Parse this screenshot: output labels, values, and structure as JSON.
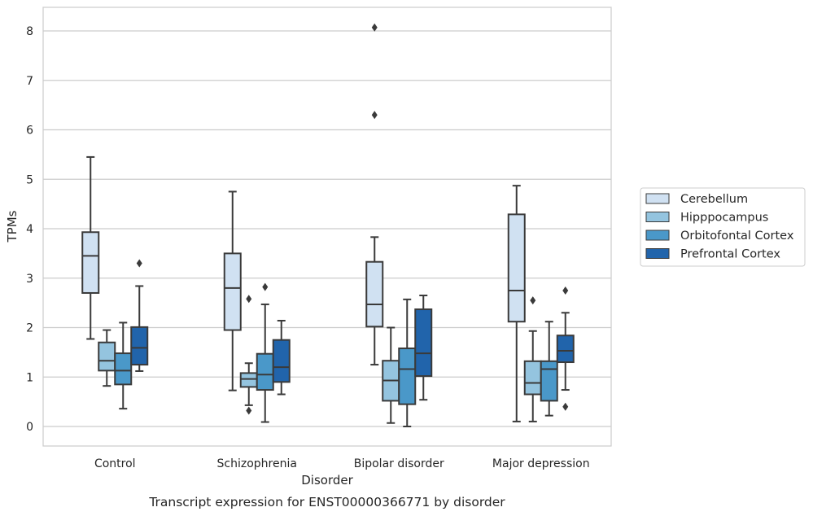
{
  "chart_data": {
    "type": "box",
    "xlabel": "Disorder",
    "ylabel": "TPMs",
    "caption": "Transcript expression for ENST00000366771 by disorder",
    "categories": [
      "Control",
      "Schizophrenia",
      "Bipolar disorder",
      "Major depression"
    ],
    "yticks": [
      "0",
      "1",
      "2",
      "3",
      "4",
      "5",
      "6",
      "7",
      "8"
    ],
    "ylim": [
      -0.4,
      8.5
    ],
    "grid": "horizontal",
    "legend_position": "right",
    "series": [
      {
        "name": "Cerebellum",
        "color": "#d0e1f2",
        "boxes": [
          {
            "whislo": 1.77,
            "q1": 2.7,
            "med": 3.45,
            "q3": 3.93,
            "whishi": 5.45,
            "fliers": []
          },
          {
            "whislo": 0.73,
            "q1": 1.95,
            "med": 2.8,
            "q3": 3.5,
            "whishi": 4.75,
            "fliers": []
          },
          {
            "whislo": 1.25,
            "q1": 2.02,
            "med": 2.47,
            "q3": 3.33,
            "whishi": 3.83,
            "fliers": [
              6.3,
              8.07
            ]
          },
          {
            "whislo": 0.1,
            "q1": 2.12,
            "med": 2.75,
            "q3": 4.29,
            "whishi": 4.87,
            "fliers": []
          }
        ]
      },
      {
        "name": "Hipppocampus",
        "color": "#94c4df",
        "boxes": [
          {
            "whislo": 0.82,
            "q1": 1.13,
            "med": 1.33,
            "q3": 1.7,
            "whishi": 1.95,
            "fliers": []
          },
          {
            "whislo": 0.43,
            "q1": 0.8,
            "med": 0.96,
            "q3": 1.08,
            "whishi": 1.28,
            "fliers": [
              0.32,
              2.58
            ]
          },
          {
            "whislo": 0.07,
            "q1": 0.52,
            "med": 0.93,
            "q3": 1.33,
            "whishi": 2.0,
            "fliers": []
          },
          {
            "whislo": 0.1,
            "q1": 0.65,
            "med": 0.88,
            "q3": 1.32,
            "whishi": 1.93,
            "fliers": [
              2.55
            ]
          }
        ]
      },
      {
        "name": "Orbitofontal Cortex",
        "color": "#4a98c9",
        "boxes": [
          {
            "whislo": 0.36,
            "q1": 0.85,
            "med": 1.13,
            "q3": 1.48,
            "whishi": 2.1,
            "fliers": []
          },
          {
            "whislo": 0.09,
            "q1": 0.74,
            "med": 1.05,
            "q3": 1.47,
            "whishi": 2.47,
            "fliers": [
              2.82
            ]
          },
          {
            "whislo": 0.0,
            "q1": 0.45,
            "med": 1.16,
            "q3": 1.58,
            "whishi": 2.57,
            "fliers": []
          },
          {
            "whislo": 0.22,
            "q1": 0.52,
            "med": 1.16,
            "q3": 1.32,
            "whishi": 2.12,
            "fliers": []
          }
        ]
      },
      {
        "name": "Prefrontal Cortex",
        "color": "#2164ab",
        "boxes": [
          {
            "whislo": 1.12,
            "q1": 1.25,
            "med": 1.59,
            "q3": 2.01,
            "whishi": 2.84,
            "fliers": [
              3.3
            ]
          },
          {
            "whislo": 0.65,
            "q1": 0.9,
            "med": 1.2,
            "q3": 1.75,
            "whishi": 2.14,
            "fliers": []
          },
          {
            "whislo": 0.54,
            "q1": 1.02,
            "med": 1.48,
            "q3": 2.37,
            "whishi": 2.65,
            "fliers": []
          },
          {
            "whislo": 0.74,
            "q1": 1.3,
            "med": 1.53,
            "q3": 1.84,
            "whishi": 2.3,
            "fliers": [
              0.4,
              2.75
            ]
          }
        ]
      }
    ]
  }
}
